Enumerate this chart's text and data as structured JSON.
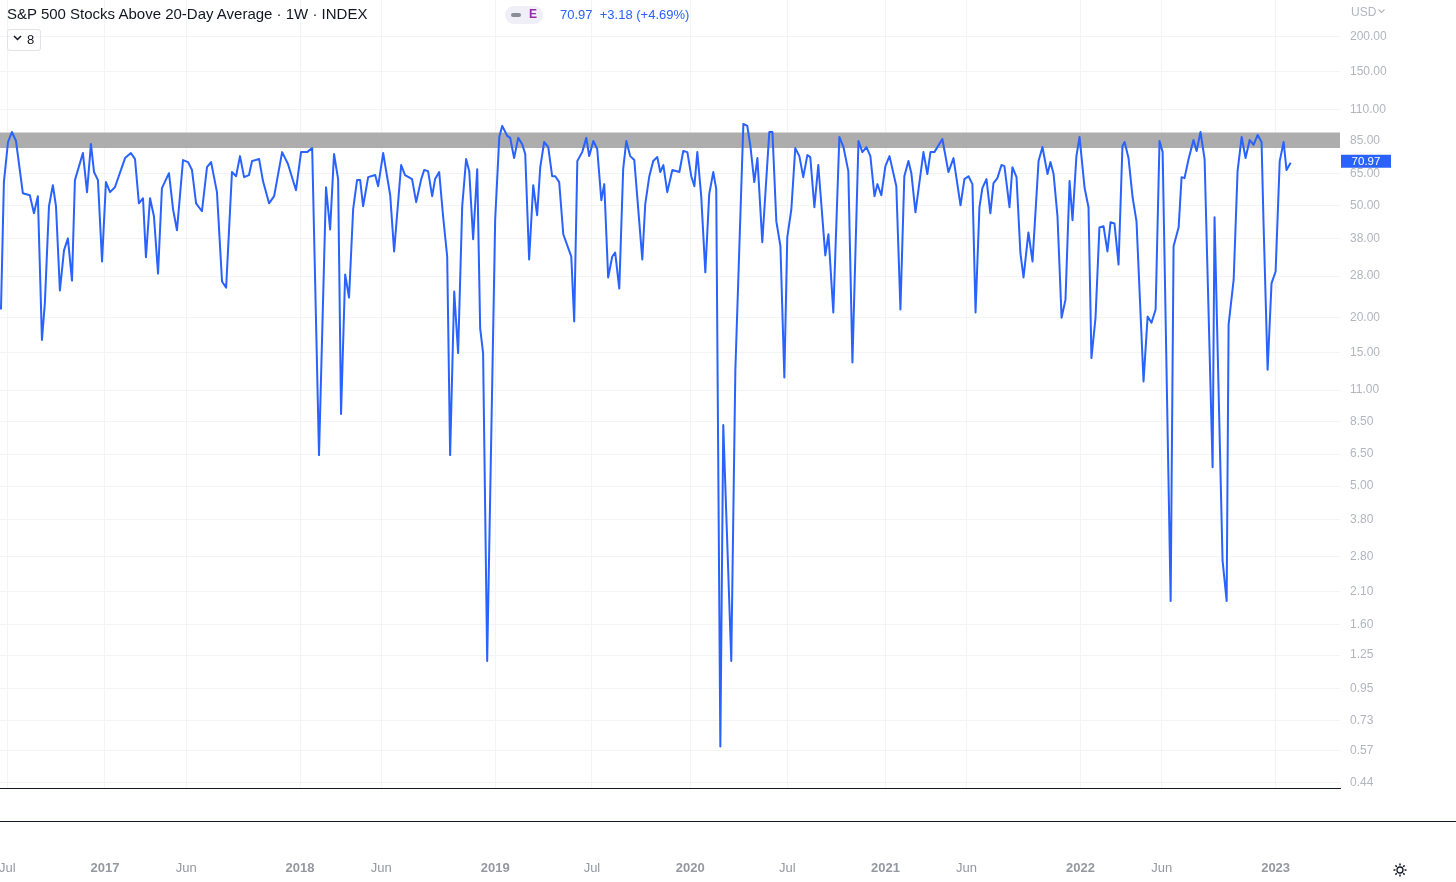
{
  "chart_data": {
    "type": "line",
    "title": "S&P 500 Stocks Above 20-Day Average · 1W · INDEX",
    "subtitle": "70.97  +3.18 (+4.69%)",
    "ylabel": "USD",
    "annotations": [
      "8",
      "E",
      "70.97"
    ],
    "log": true,
    "grid": true,
    "legend": false,
    "marker": "none",
    "line_style": "solid",
    "xlim": [
      2016.462,
      2023.33
    ],
    "xticks": [
      {
        "value": 2016.5,
        "label": "Jul"
      },
      {
        "value": 2017,
        "label": "2017"
      },
      {
        "value": 2017.416,
        "label": "Jun"
      },
      {
        "value": 2018,
        "label": "2018"
      },
      {
        "value": 2018.416,
        "label": "Jun"
      },
      {
        "value": 2019,
        "label": "2019"
      },
      {
        "value": 2019.496,
        "label": "Jul"
      },
      {
        "value": 2020,
        "label": "2020"
      },
      {
        "value": 2020.497,
        "label": "Jul"
      },
      {
        "value": 2021,
        "label": "2021"
      },
      {
        "value": 2021.416,
        "label": "Jun"
      },
      {
        "value": 2022,
        "label": "2022"
      },
      {
        "value": 2022.416,
        "label": "Jun"
      },
      {
        "value": 2023,
        "label": "2023"
      }
    ],
    "ylim": [
      0.42,
      270
    ],
    "yticks": [
      {
        "value": 200,
        "label": "200.00"
      },
      {
        "value": 150,
        "label": "150.00"
      },
      {
        "value": 110,
        "label": "110.00"
      },
      {
        "value": 85,
        "label": "85.00"
      },
      {
        "value": 65,
        "label": "65.00"
      },
      {
        "value": 50,
        "label": "50.00"
      },
      {
        "value": 38,
        "label": "38.00"
      },
      {
        "value": 28,
        "label": "28.00"
      },
      {
        "value": 20,
        "label": "20.00"
      },
      {
        "value": 15,
        "label": "15.00"
      },
      {
        "value": 11,
        "label": "11.00"
      },
      {
        "value": 8.5,
        "label": "8.50"
      },
      {
        "value": 6.5,
        "label": "6.50"
      },
      {
        "value": 5,
        "label": "5.00"
      },
      {
        "value": 3.8,
        "label": "3.80"
      },
      {
        "value": 2.8,
        "label": "2.80"
      },
      {
        "value": 2.1,
        "label": "2.10"
      },
      {
        "value": 1.6,
        "label": "1.60"
      },
      {
        "value": 1.25,
        "label": "1.25"
      },
      {
        "value": 0.95,
        "label": "0.95"
      },
      {
        "value": 0.73,
        "label": "0.73"
      },
      {
        "value": 0.57,
        "label": "0.57"
      },
      {
        "value": 0.44,
        "label": "0.44"
      }
    ],
    "bands": [
      {
        "axis": "y",
        "from": 80.1,
        "to": 91.0,
        "color": "#adadad"
      }
    ],
    "series": [
      {
        "color": "#2962ff",
        "x": [
          2016.467,
          2016.482,
          2016.503,
          2016.523,
          2016.544,
          2016.579,
          2016.615,
          2016.636,
          2016.656,
          2016.677,
          2016.692,
          2016.713,
          2016.733,
          2016.749,
          2016.769,
          2016.79,
          2016.81,
          2016.831,
          2016.846,
          2016.887,
          2016.908,
          2016.928,
          2016.944,
          2016.964,
          2016.985,
          2017.005,
          2017.026,
          2017.051,
          2017.103,
          2017.133,
          2017.154,
          2017.174,
          2017.195,
          2017.21,
          2017.231,
          2017.251,
          2017.272,
          2017.292,
          2017.328,
          2017.349,
          2017.369,
          2017.4,
          2017.426,
          2017.446,
          2017.467,
          2017.497,
          2017.523,
          2017.544,
          2017.574,
          2017.6,
          2017.621,
          2017.651,
          2017.672,
          2017.692,
          2017.713,
          2017.738,
          2017.754,
          2017.79,
          2017.81,
          2017.841,
          2017.867,
          2017.908,
          2017.938,
          2017.979,
          2018.005,
          2018.036,
          2018.062,
          2018.097,
          2018.133,
          2018.154,
          2018.174,
          2018.195,
          2018.21,
          2018.231,
          2018.251,
          2018.272,
          2018.292,
          2018.308,
          2018.323,
          2018.349,
          2018.385,
          2018.4,
          2018.426,
          2018.462,
          2018.482,
          2018.518,
          2018.538,
          2018.574,
          2018.595,
          2018.621,
          2018.636,
          2018.656,
          2018.677,
          2018.692,
          2018.713,
          2018.733,
          2018.754,
          2018.769,
          2018.79,
          2018.81,
          2018.831,
          2018.851,
          2018.867,
          2018.887,
          2018.908,
          2018.923,
          2018.938,
          2018.959,
          2019.0,
          2019.021,
          2019.036,
          2019.062,
          2019.077,
          2019.097,
          2019.118,
          2019.138,
          2019.154,
          2019.174,
          2019.195,
          2019.215,
          2019.231,
          2019.251,
          2019.272,
          2019.292,
          2019.308,
          2019.328,
          2019.349,
          2019.39,
          2019.405,
          2019.421,
          2019.446,
          2019.467,
          2019.482,
          2019.503,
          2019.523,
          2019.544,
          2019.559,
          2019.579,
          2019.6,
          2019.615,
          2019.636,
          2019.656,
          2019.672,
          2019.692,
          2019.713,
          2019.754,
          2019.769,
          2019.79,
          2019.81,
          2019.831,
          2019.846,
          2019.862,
          2019.882,
          2019.908,
          2019.944,
          2019.964,
          2019.985,
          2020.005,
          2020.021,
          2020.036,
          2020.056,
          2020.077,
          2020.097,
          2020.118,
          2020.133,
          2020.154,
          2020.169,
          2020.21,
          2020.231,
          2020.272,
          2020.292,
          2020.308,
          2020.328,
          2020.344,
          2020.369,
          2020.405,
          2020.421,
          2020.441,
          2020.462,
          2020.482,
          2020.497,
          2020.518,
          2020.538,
          2020.559,
          2020.579,
          2020.6,
          2020.615,
          2020.636,
          2020.656,
          2020.692,
          2020.708,
          2020.733,
          2020.764,
          2020.785,
          2020.81,
          2020.831,
          2020.862,
          2020.882,
          2020.903,
          2020.923,
          2020.944,
          2020.959,
          2020.979,
          2021.0,
          2021.021,
          2021.056,
          2021.077,
          2021.097,
          2021.118,
          2021.133,
          2021.154,
          2021.195,
          2021.215,
          2021.231,
          2021.251,
          2021.292,
          2021.323,
          2021.349,
          2021.385,
          2021.405,
          2021.426,
          2021.446,
          2021.462,
          2021.482,
          2021.497,
          2021.518,
          2021.538,
          2021.554,
          2021.574,
          2021.595,
          2021.61,
          2021.636,
          2021.651,
          2021.672,
          2021.692,
          2021.708,
          2021.733,
          2021.754,
          2021.785,
          2021.805,
          2021.831,
          2021.846,
          2021.862,
          2021.882,
          2021.903,
          2021.923,
          2021.944,
          2021.959,
          2021.979,
          2021.995,
          2022.021,
          2022.041,
          2022.056,
          2022.077,
          2022.097,
          2022.118,
          2022.138,
          2022.154,
          2022.174,
          2022.195,
          2022.215,
          2022.226,
          2022.246,
          2022.267,
          2022.287,
          2022.323,
          2022.344,
          2022.364,
          2022.385,
          2022.405,
          2022.421,
          2022.462,
          2022.477,
          2022.503,
          2022.518,
          2022.533,
          2022.554,
          2022.579,
          2022.595,
          2022.615,
          2022.636,
          2022.656,
          2022.677,
          2022.687,
          2022.728,
          2022.749,
          2022.759,
          2022.785,
          2022.805,
          2022.826,
          2022.846,
          2022.867,
          2022.887,
          2022.908,
          2022.928,
          2022.938,
          2022.959,
          2022.979,
          2023.0,
          2023.021,
          2023.041,
          2023.056,
          2023.077
        ],
        "values": [
          21.3,
          60.6,
          84.2,
          91.4,
          84.9,
          55.3,
          54.4,
          46.9,
          54.0,
          16.6,
          22.5,
          49.7,
          59.1,
          49.7,
          24.9,
          34.6,
          38.2,
          27.0,
          61.6,
          76.9,
          55.8,
          82.8,
          65.8,
          61.6,
          31.6,
          60.6,
          55.8,
          58.1,
          73.8,
          76.9,
          73.2,
          50.9,
          53.1,
          32.7,
          53.1,
          45.8,
          28.6,
          57.7,
          65.2,
          48.5,
          40.8,
          72.6,
          71.4,
          66.9,
          50.9,
          47.7,
          68.5,
          71.4,
          55.8,
          26.8,
          25.5,
          65.8,
          63.6,
          75.0,
          63.1,
          64.2,
          72.0,
          73.2,
          61.1,
          50.9,
          54.0,
          77.5,
          70.3,
          56.7,
          77.5,
          77.5,
          80.1,
          6.45,
          58.1,
          41.1,
          76.3,
          62.1,
          9.04,
          28.4,
          23.5,
          48.5,
          61.6,
          61.6,
          49.7,
          63.1,
          64.2,
          58.6,
          76.9,
          54.4,
          34.3,
          69.7,
          64.2,
          62.1,
          51.4,
          62.1,
          66.9,
          66.3,
          54.0,
          62.1,
          65.8,
          45.8,
          32.9,
          6.45,
          24.7,
          14.9,
          49.7,
          73.2,
          66.3,
          37.9,
          67.4,
          18.3,
          14.9,
          1.19,
          44.6,
          87.8,
          96.1,
          88.5,
          87.1,
          73.8,
          87.1,
          82.8,
          76.3,
          32.1,
          59.1,
          46.2,
          68.5,
          84.2,
          80.8,
          63.6,
          63.6,
          60.6,
          39.5,
          32.9,
          19.3,
          72.0,
          77.5,
          87.1,
          75.0,
          84.9,
          79.5,
          52.2,
          59.6,
          27.7,
          32.9,
          34.0,
          25.3,
          67.4,
          84.9,
          75.0,
          72.6,
          32.1,
          50.5,
          63.6,
          72.0,
          74.4,
          65.8,
          69.7,
          55.8,
          66.9,
          65.8,
          78.2,
          77.5,
          63.6,
          58.6,
          77.5,
          54.0,
          28.9,
          54.9,
          65.8,
          57.2,
          0.59,
          8.26,
          1.19,
          13.0,
          97.7,
          96.1,
          81.5,
          60.6,
          73.8,
          37.0,
          91.4,
          91.4,
          43.9,
          35.8,
          12.2,
          38.5,
          48.5,
          80.1,
          75.0,
          63.1,
          75.6,
          74.4,
          49.3,
          69.7,
          33.2,
          39.5,
          20.8,
          87.8,
          80.8,
          66.3,
          13.8,
          84.9,
          77.5,
          80.8,
          75.0,
          54.0,
          59.6,
          54.4,
          69.1,
          75.0,
          58.6,
          21.3,
          63.6,
          72.0,
          65.2,
          47.3,
          77.5,
          64.7,
          77.5,
          77.5,
          86.3,
          65.8,
          73.8,
          50.1,
          62.1,
          63.6,
          59.6,
          20.8,
          49.3,
          57.7,
          62.1,
          46.9,
          60.1,
          62.6,
          69.7,
          69.1,
          49.3,
          68.5,
          63.1,
          33.8,
          27.7,
          40.1,
          31.6,
          72.0,
          80.8,
          64.7,
          71.4,
          64.7,
          45.8,
          19.9,
          23.1,
          61.1,
          44.3,
          75.0,
          87.8,
          57.7,
          49.3,
          14.3,
          19.9,
          41.8,
          42.2,
          34.3,
          43.6,
          43.2,
          30.8,
          81.5,
          84.2,
          73.8,
          53.5,
          43.9,
          11.8,
          20.1,
          19.1,
          21.3,
          84.9,
          77.5,
          1.95,
          35.8,
          41.8,
          63.1,
          62.6,
          73.2,
          85.6,
          78.2,
          91.4,
          73.2,
          21.3,
          5.84,
          45.4,
          2.72,
          1.95,
          18.8,
          27.2,
          66.3,
          87.8,
          73.8,
          85.6,
          82.2,
          89.2,
          84.2,
          43.6,
          13.0,
          26.4,
          29.1,
          72.0,
          84.2,
          66.9,
          70.97
        ]
      }
    ]
  }
}
